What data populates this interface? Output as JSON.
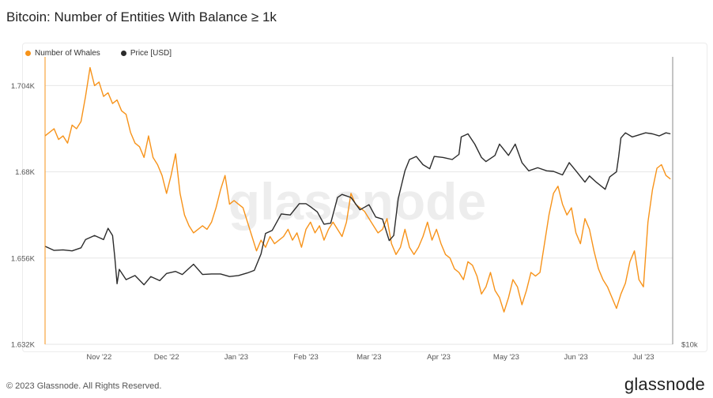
{
  "title": "Bitcoin: Number of Entities With Balance ≥ 1k",
  "legend": {
    "whales_label": "Number of Whales",
    "price_label": "Price [USD]"
  },
  "watermark": "glassnode",
  "footer": {
    "copyright": "© 2023 Glassnode. All Rights Reserved.",
    "logo": "glassnode"
  },
  "colors": {
    "whales": "#f7931a",
    "price": "#2b2b2b",
    "grid": "#e6e6e6",
    "axis_text": "#555555"
  },
  "chart_data": {
    "type": "line",
    "x_ticks": [
      "Nov '22",
      "Dec '22",
      "Jan '23",
      "Feb '23",
      "Mar '23",
      "Apr '23",
      "May '23",
      "Jun '23",
      "Jul '23"
    ],
    "y_left_ticks": [
      "1.632K",
      "1.656K",
      "1.68K",
      "1.704K"
    ],
    "y_left_range": [
      1632,
      1712
    ],
    "y_right_ticks": [
      "$10k"
    ],
    "y_right_range": [
      10000,
      38000
    ],
    "x_range": [
      "2022-10-08",
      "2023-07-14"
    ],
    "series": [
      {
        "name": "Number of Whales",
        "axis": "left",
        "points": [
          [
            "2022-10-08",
            1690
          ],
          [
            "2022-10-10",
            1691
          ],
          [
            "2022-10-12",
            1692
          ],
          [
            "2022-10-14",
            1689
          ],
          [
            "2022-10-16",
            1690
          ],
          [
            "2022-10-18",
            1688
          ],
          [
            "2022-10-20",
            1693
          ],
          [
            "2022-10-22",
            1692
          ],
          [
            "2022-10-24",
            1694
          ],
          [
            "2022-10-26",
            1701
          ],
          [
            "2022-10-28",
            1709
          ],
          [
            "2022-10-30",
            1704
          ],
          [
            "2022-11-01",
            1705
          ],
          [
            "2022-11-03",
            1701
          ],
          [
            "2022-11-05",
            1702
          ],
          [
            "2022-11-07",
            1699
          ],
          [
            "2022-11-09",
            1700
          ],
          [
            "2022-11-11",
            1697
          ],
          [
            "2022-11-13",
            1696
          ],
          [
            "2022-11-15",
            1691
          ],
          [
            "2022-11-17",
            1688
          ],
          [
            "2022-11-19",
            1687
          ],
          [
            "2022-11-21",
            1684
          ],
          [
            "2022-11-23",
            1690
          ],
          [
            "2022-11-25",
            1684
          ],
          [
            "2022-11-27",
            1682
          ],
          [
            "2022-11-29",
            1679
          ],
          [
            "2022-12-01",
            1674
          ],
          [
            "2022-12-03",
            1679
          ],
          [
            "2022-12-05",
            1685
          ],
          [
            "2022-12-07",
            1674
          ],
          [
            "2022-12-09",
            1668
          ],
          [
            "2022-12-11",
            1665
          ],
          [
            "2022-12-13",
            1663
          ],
          [
            "2022-12-15",
            1664
          ],
          [
            "2022-12-17",
            1665
          ],
          [
            "2022-12-19",
            1664
          ],
          [
            "2022-12-21",
            1666
          ],
          [
            "2022-12-23",
            1670
          ],
          [
            "2022-12-25",
            1675
          ],
          [
            "2022-12-27",
            1679
          ],
          [
            "2022-12-29",
            1671
          ],
          [
            "2022-12-31",
            1672
          ],
          [
            "2023-01-02",
            1671
          ],
          [
            "2023-01-04",
            1670
          ],
          [
            "2023-01-06",
            1666
          ],
          [
            "2023-01-08",
            1662
          ],
          [
            "2023-01-10",
            1658
          ],
          [
            "2023-01-12",
            1661
          ],
          [
            "2023-01-14",
            1659
          ],
          [
            "2023-01-16",
            1662
          ],
          [
            "2023-01-18",
            1660
          ],
          [
            "2023-01-20",
            1661
          ],
          [
            "2023-01-22",
            1662
          ],
          [
            "2023-01-24",
            1664
          ],
          [
            "2023-01-26",
            1661
          ],
          [
            "2023-01-28",
            1663
          ],
          [
            "2023-01-30",
            1659
          ],
          [
            "2023-02-01",
            1664
          ],
          [
            "2023-02-03",
            1666
          ],
          [
            "2023-02-05",
            1663
          ],
          [
            "2023-02-07",
            1665
          ],
          [
            "2023-02-09",
            1661
          ],
          [
            "2023-02-11",
            1664
          ],
          [
            "2023-02-13",
            1666
          ],
          [
            "2023-02-15",
            1664
          ],
          [
            "2023-02-17",
            1662
          ],
          [
            "2023-02-19",
            1666
          ],
          [
            "2023-02-21",
            1674
          ],
          [
            "2023-02-23",
            1671
          ],
          [
            "2023-02-25",
            1670
          ],
          [
            "2023-02-27",
            1669
          ],
          [
            "2023-03-01",
            1667
          ],
          [
            "2023-03-03",
            1665
          ],
          [
            "2023-03-05",
            1663
          ],
          [
            "2023-03-07",
            1664
          ],
          [
            "2023-03-09",
            1667
          ],
          [
            "2023-03-11",
            1660
          ],
          [
            "2023-03-13",
            1657
          ],
          [
            "2023-03-15",
            1659
          ],
          [
            "2023-03-17",
            1664
          ],
          [
            "2023-03-19",
            1659
          ],
          [
            "2023-03-21",
            1657
          ],
          [
            "2023-03-23",
            1659
          ],
          [
            "2023-03-25",
            1662
          ],
          [
            "2023-03-27",
            1666
          ],
          [
            "2023-03-29",
            1661
          ],
          [
            "2023-03-31",
            1664
          ],
          [
            "2023-04-02",
            1660
          ],
          [
            "2023-04-04",
            1657
          ],
          [
            "2023-04-06",
            1656
          ],
          [
            "2023-04-08",
            1653
          ],
          [
            "2023-04-10",
            1652
          ],
          [
            "2023-04-12",
            1650
          ],
          [
            "2023-04-14",
            1655
          ],
          [
            "2023-04-16",
            1654
          ],
          [
            "2023-04-18",
            1651
          ],
          [
            "2023-04-20",
            1646
          ],
          [
            "2023-04-22",
            1648
          ],
          [
            "2023-04-24",
            1652
          ],
          [
            "2023-04-26",
            1647
          ],
          [
            "2023-04-28",
            1645
          ],
          [
            "2023-04-30",
            1641
          ],
          [
            "2023-05-02",
            1645
          ],
          [
            "2023-05-04",
            1650
          ],
          [
            "2023-05-06",
            1648
          ],
          [
            "2023-05-08",
            1643
          ],
          [
            "2023-05-10",
            1647
          ],
          [
            "2023-05-12",
            1652
          ],
          [
            "2023-05-14",
            1651
          ],
          [
            "2023-05-16",
            1652
          ],
          [
            "2023-05-18",
            1660
          ],
          [
            "2023-05-20",
            1668
          ],
          [
            "2023-05-22",
            1674
          ],
          [
            "2023-05-24",
            1676
          ],
          [
            "2023-05-26",
            1671
          ],
          [
            "2023-05-28",
            1668
          ],
          [
            "2023-05-30",
            1670
          ],
          [
            "2023-06-01",
            1663
          ],
          [
            "2023-06-03",
            1660
          ],
          [
            "2023-06-05",
            1667
          ],
          [
            "2023-06-07",
            1664
          ],
          [
            "2023-06-09",
            1658
          ],
          [
            "2023-06-11",
            1653
          ],
          [
            "2023-06-13",
            1650
          ],
          [
            "2023-06-15",
            1648
          ],
          [
            "2023-06-17",
            1645
          ],
          [
            "2023-06-19",
            1642
          ],
          [
            "2023-06-21",
            1646
          ],
          [
            "2023-06-23",
            1649
          ],
          [
            "2023-06-25",
            1655
          ],
          [
            "2023-06-27",
            1658
          ],
          [
            "2023-06-29",
            1650
          ],
          [
            "2023-07-01",
            1648
          ],
          [
            "2023-07-03",
            1666
          ],
          [
            "2023-07-05",
            1675
          ],
          [
            "2023-07-07",
            1681
          ],
          [
            "2023-07-09",
            1682
          ],
          [
            "2023-07-11",
            1679
          ],
          [
            "2023-07-13",
            1678
          ]
        ]
      },
      {
        "name": "Price [USD]",
        "axis": "right",
        "points": [
          [
            "2022-10-08",
            19550
          ],
          [
            "2022-10-12",
            19150
          ],
          [
            "2022-10-16",
            19200
          ],
          [
            "2022-10-20",
            19100
          ],
          [
            "2022-10-24",
            19400
          ],
          [
            "2022-10-26",
            20200
          ],
          [
            "2022-10-30",
            20600
          ],
          [
            "2022-11-03",
            20200
          ],
          [
            "2022-11-05",
            21300
          ],
          [
            "2022-11-07",
            20600
          ],
          [
            "2022-11-08",
            18500
          ],
          [
            "2022-11-09",
            15900
          ],
          [
            "2022-11-10",
            17300
          ],
          [
            "2022-11-13",
            16300
          ],
          [
            "2022-11-17",
            16700
          ],
          [
            "2022-11-21",
            15800
          ],
          [
            "2022-11-24",
            16600
          ],
          [
            "2022-11-28",
            16200
          ],
          [
            "2022-12-01",
            16900
          ],
          [
            "2022-12-05",
            17100
          ],
          [
            "2022-12-08",
            16800
          ],
          [
            "2022-12-13",
            17800
          ],
          [
            "2022-12-17",
            16800
          ],
          [
            "2022-12-21",
            16850
          ],
          [
            "2022-12-25",
            16850
          ],
          [
            "2022-12-29",
            16600
          ],
          [
            "2023-01-02",
            16700
          ],
          [
            "2023-01-06",
            16950
          ],
          [
            "2023-01-09",
            17200
          ],
          [
            "2023-01-12",
            18800
          ],
          [
            "2023-01-14",
            20800
          ],
          [
            "2023-01-17",
            21100
          ],
          [
            "2023-01-21",
            22700
          ],
          [
            "2023-01-25",
            22600
          ],
          [
            "2023-01-29",
            23700
          ],
          [
            "2023-02-01",
            23700
          ],
          [
            "2023-02-03",
            23400
          ],
          [
            "2023-02-06",
            22900
          ],
          [
            "2023-02-09",
            21700
          ],
          [
            "2023-02-12",
            21800
          ],
          [
            "2023-02-15",
            24300
          ],
          [
            "2023-02-17",
            24600
          ],
          [
            "2023-02-21",
            24300
          ],
          [
            "2023-02-25",
            23100
          ],
          [
            "2023-03-01",
            23600
          ],
          [
            "2023-03-04",
            22400
          ],
          [
            "2023-03-07",
            22200
          ],
          [
            "2023-03-10",
            20100
          ],
          [
            "2023-03-12",
            20600
          ],
          [
            "2023-03-14",
            24200
          ],
          [
            "2023-03-17",
            26900
          ],
          [
            "2023-03-19",
            28000
          ],
          [
            "2023-03-22",
            28300
          ],
          [
            "2023-03-25",
            27500
          ],
          [
            "2023-03-28",
            27100
          ],
          [
            "2023-03-30",
            28300
          ],
          [
            "2023-04-03",
            28200
          ],
          [
            "2023-04-07",
            28000
          ],
          [
            "2023-04-10",
            28500
          ],
          [
            "2023-04-11",
            30200
          ],
          [
            "2023-04-14",
            30500
          ],
          [
            "2023-04-17",
            29500
          ],
          [
            "2023-04-20",
            28200
          ],
          [
            "2023-04-22",
            27800
          ],
          [
            "2023-04-26",
            28400
          ],
          [
            "2023-04-28",
            29500
          ],
          [
            "2023-05-02",
            28400
          ],
          [
            "2023-05-05",
            29500
          ],
          [
            "2023-05-08",
            27700
          ],
          [
            "2023-05-11",
            26900
          ],
          [
            "2023-05-15",
            27200
          ],
          [
            "2023-05-19",
            26900
          ],
          [
            "2023-05-22",
            26850
          ],
          [
            "2023-05-26",
            26500
          ],
          [
            "2023-05-29",
            27700
          ],
          [
            "2023-06-01",
            26900
          ],
          [
            "2023-06-05",
            25800
          ],
          [
            "2023-06-07",
            26400
          ],
          [
            "2023-06-10",
            25800
          ],
          [
            "2023-06-14",
            25100
          ],
          [
            "2023-06-16",
            26300
          ],
          [
            "2023-06-19",
            26800
          ],
          [
            "2023-06-20",
            28300
          ],
          [
            "2023-06-21",
            30100
          ],
          [
            "2023-06-23",
            30600
          ],
          [
            "2023-06-26",
            30200
          ],
          [
            "2023-06-29",
            30400
          ],
          [
            "2023-07-02",
            30600
          ],
          [
            "2023-07-05",
            30500
          ],
          [
            "2023-07-08",
            30300
          ],
          [
            "2023-07-11",
            30600
          ],
          [
            "2023-07-13",
            30500
          ]
        ]
      }
    ]
  }
}
